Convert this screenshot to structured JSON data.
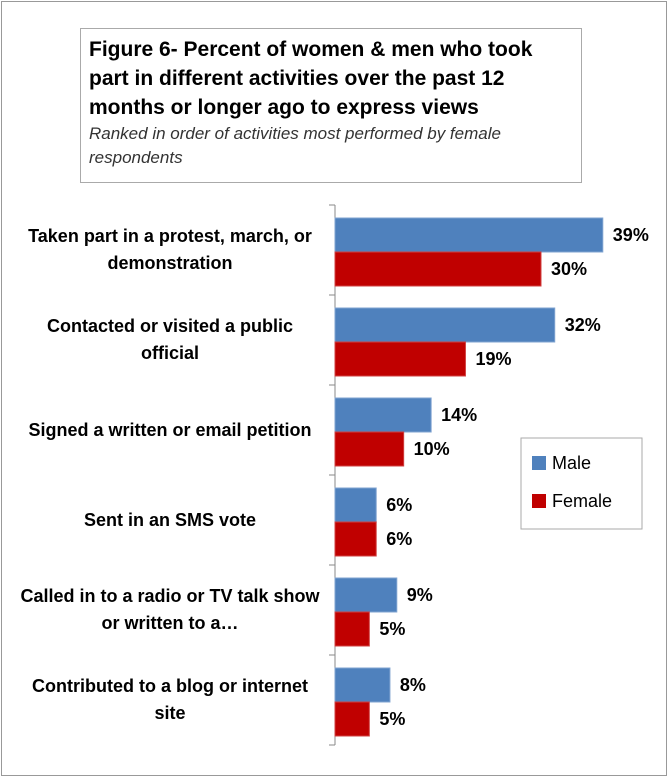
{
  "chart_data": {
    "type": "hbar",
    "title": "Figure 6- Percent of women & men who took part in different activities over the past 12 months or longer ago to express views",
    "subtitle": "Ranked in order of activities most performed by female respondents",
    "categories": [
      "Taken part in a protest, march, or demonstration",
      "Contacted or visited a public official",
      "Signed a written or email petition",
      "Sent in an SMS vote",
      "Called in to a radio or TV talk show or  written to a…",
      "Contributed to a blog or internet site"
    ],
    "series": [
      {
        "name": "Male",
        "color": "#4f81bd",
        "values": [
          39,
          32,
          14,
          6,
          9,
          8
        ],
        "value_labels": [
          "39%",
          "32%",
          "14%",
          "6%",
          "9%",
          "8%"
        ]
      },
      {
        "name": "Female",
        "color": "#c00000",
        "values": [
          30,
          19,
          10,
          6,
          5,
          5
        ],
        "value_labels": [
          "30%",
          "19%",
          "10%",
          "6%",
          "5%",
          "5%"
        ]
      }
    ],
    "xlim": [
      0,
      45
    ],
    "legend": "right"
  }
}
